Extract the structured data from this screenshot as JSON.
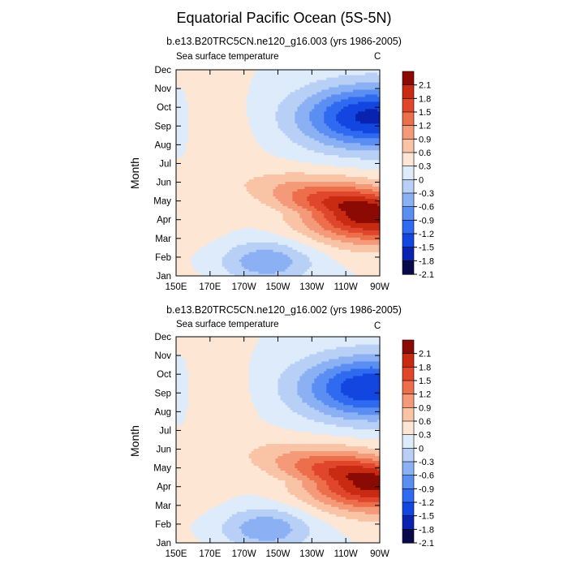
{
  "figure": {
    "title": "Equatorial Pacific Ocean (5S-5N)"
  },
  "chart_data": [
    {
      "type": "heatmap",
      "subtitle": "b.e13.B20TRC5CN.ne120_g16.003 (yrs 1986-2005)",
      "left_string": "Sea surface temperature",
      "right_string": "C",
      "xlabel": "",
      "ylabel": "Month",
      "x_ticks": [
        "150E",
        "170E",
        "170W",
        "150W",
        "130W",
        "110W",
        "90W"
      ],
      "y_ticks": [
        "Jan",
        "Feb",
        "Mar",
        "Apr",
        "May",
        "Jun",
        "Jul",
        "Aug",
        "Sep",
        "Oct",
        "Nov",
        "Dec"
      ],
      "colorbar_levels": [
        "2.1",
        "1.8",
        "1.5",
        "1.2",
        "0.9",
        "0.6",
        "0.3",
        "0",
        "-0.3",
        "-0.6",
        "-0.9",
        "-1.2",
        "-1.5",
        "-1.8",
        "-2.1"
      ],
      "anomaly_center": {
        "warm_peak_month": 4.4,
        "warm_peak_lon": 265,
        "warm_peak_value": 2.1,
        "cold_peak_month": 9.5,
        "cold_peak_lon": 265,
        "cold_peak_value": -1.9
      }
    },
    {
      "type": "heatmap",
      "subtitle": "b.e13.B20TRC5CN.ne120_g16.002 (yrs 1986-2005)",
      "left_string": "Sea surface temperature",
      "right_string": "C",
      "xlabel": "",
      "ylabel": "Month",
      "x_ticks": [
        "150E",
        "170E",
        "170W",
        "150W",
        "130W",
        "110W",
        "90W"
      ],
      "y_ticks": [
        "Jan",
        "Feb",
        "Mar",
        "Apr",
        "May",
        "Jun",
        "Jul",
        "Aug",
        "Sep",
        "Oct",
        "Nov",
        "Dec"
      ],
      "colorbar_levels": [
        "2.1",
        "1.8",
        "1.5",
        "1.2",
        "0.9",
        "0.6",
        "0.3",
        "0",
        "-0.3",
        "-0.6",
        "-0.9",
        "-1.2",
        "-1.5",
        "-1.8",
        "-2.1"
      ],
      "anomaly_center": {
        "warm_peak_month": 4.3,
        "warm_peak_lon": 266,
        "warm_peak_value": 2.0,
        "cold_peak_month": 9.3,
        "cold_peak_lon": 265,
        "cold_peak_value": -1.8
      }
    }
  ],
  "colors": [
    "#08084a",
    "#0a22b0",
    "#1346e0",
    "#2f6af0",
    "#5a8ef2",
    "#8bb0f4",
    "#b9d0f6",
    "#deebfa",
    "#fde6d4",
    "#f9c3a6",
    "#f49a78",
    "#ec6e4a",
    "#e0462a",
    "#c82a12",
    "#8c0a04"
  ]
}
